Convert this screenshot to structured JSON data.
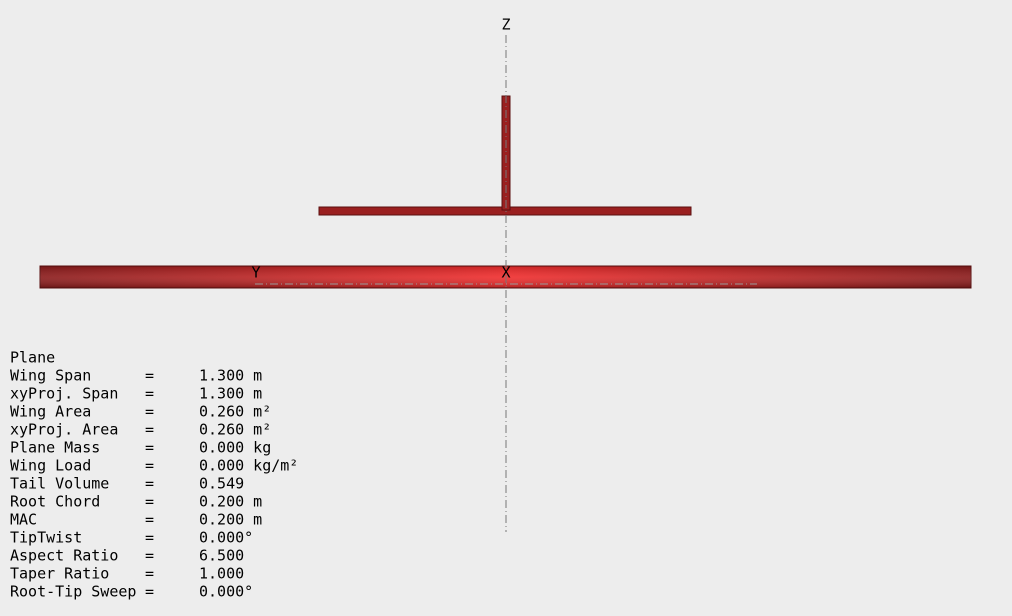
{
  "view": {
    "axes": {
      "z": "Z",
      "y": "Y",
      "x": "X"
    }
  },
  "info": {
    "title": "Plane",
    "separator": "=",
    "rows": [
      {
        "label": "Wing Span",
        "value": "1.300 m"
      },
      {
        "label": "xyProj. Span",
        "value": "1.300 m"
      },
      {
        "label": "Wing Area",
        "value": "0.260 m²"
      },
      {
        "label": "xyProj. Area",
        "value": "0.260 m²"
      },
      {
        "label": "Plane Mass",
        "value": "0.000 kg"
      },
      {
        "label": "Wing Load",
        "value": "0.000 kg/m²"
      },
      {
        "label": "Tail Volume",
        "value": "0.549"
      },
      {
        "label": "Root Chord",
        "value": "0.200 m"
      },
      {
        "label": "MAC",
        "value": "0.200 m"
      },
      {
        "label": "TipTwist",
        "value": "0.000°"
      },
      {
        "label": "Aspect Ratio",
        "value": "6.500"
      },
      {
        "label": "Taper Ratio",
        "value": "1.000"
      },
      {
        "label": "Root-Tip Sweep",
        "value": "0.000°"
      }
    ]
  }
}
